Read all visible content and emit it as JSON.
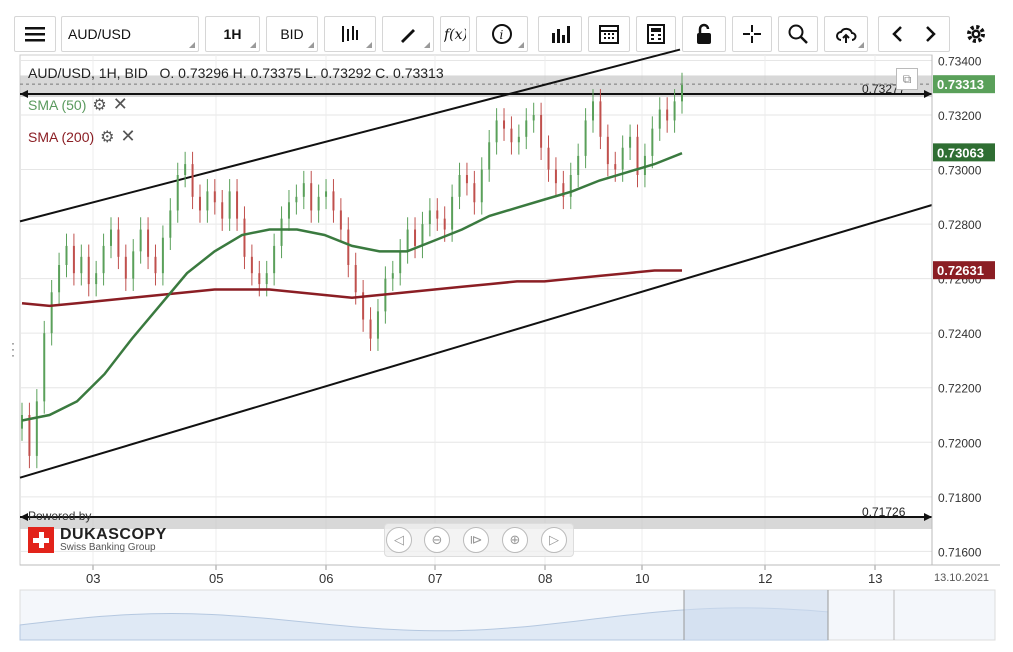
{
  "toolbar": {
    "symbol": "AUD/USD",
    "timeframe": "1H",
    "price_type": "BID",
    "icons": [
      "menu-icon",
      "candlestick-icon",
      "draw-icon",
      "function-icon",
      "info-icon",
      "bar-chart-icon",
      "calendar-icon",
      "calculator-icon",
      "lock-icon",
      "crosshair-icon",
      "zoom-icon",
      "cloud-upload-icon",
      "chevron-left-icon",
      "chevron-right-icon",
      "gear-icon"
    ]
  },
  "header": {
    "instrument_line": "AUD/USD, 1H, BID",
    "open_label": "O.",
    "open": "0.73296",
    "high_label": "H.",
    "high": "0.73375",
    "low_label": "L.",
    "low": "0.73292",
    "close_label": "C.",
    "close": "0.73313"
  },
  "indicators": [
    {
      "label": "SMA (50)",
      "color": "#3a7a3f"
    },
    {
      "label": "SMA (200)",
      "color": "#8b1e24"
    }
  ],
  "branding": {
    "powered_by": "Powered by",
    "name": "DUKASCOPY",
    "tagline": "Swiss Banking Group"
  },
  "chart_data": {
    "type": "candlestick",
    "y_ticks": [
      "0.73400",
      "0.73200",
      "0.73000",
      "0.72800",
      "0.72600",
      "0.72400",
      "0.72200",
      "0.72000",
      "0.71800",
      "0.71600"
    ],
    "ylim": [
      0.7155,
      0.7342
    ],
    "x_ticks": [
      "03",
      "05",
      "06",
      "07",
      "08",
      "10",
      "12",
      "13"
    ],
    "x_corner_label": "13.10.2021",
    "price_labels": [
      {
        "value": "0.73313",
        "color": "#5aa05a"
      },
      {
        "value": "0.73063",
        "color": "#2f6e33"
      },
      {
        "value": "0.72631",
        "color": "#8b1e24"
      }
    ],
    "horizontal_lines": [
      {
        "value": 0.73277,
        "label": "0.73277"
      },
      {
        "value": 0.71726,
        "label": "0.71726"
      }
    ],
    "upper_channel": [
      [
        0.7281
      ],
      [
        0.7344
      ]
    ],
    "lower_channel": [
      [
        0.7187
      ],
      [
        0.7287
      ]
    ],
    "candles_close": [
      0.721,
      0.7195,
      0.7215,
      0.724,
      0.7255,
      0.7265,
      0.7272,
      0.7262,
      0.7268,
      0.7258,
      0.7262,
      0.7272,
      0.7278,
      0.7268,
      0.726,
      0.727,
      0.7278,
      0.7268,
      0.7262,
      0.7275,
      0.7285,
      0.7298,
      0.7302,
      0.729,
      0.7285,
      0.7292,
      0.7288,
      0.7282,
      0.7292,
      0.7282,
      0.7268,
      0.7262,
      0.7258,
      0.7262,
      0.7272,
      0.7282,
      0.7288,
      0.729,
      0.7295,
      0.7285,
      0.729,
      0.7292,
      0.7285,
      0.7278,
      0.7265,
      0.7255,
      0.7245,
      0.7238,
      0.7248,
      0.726,
      0.7262,
      0.727,
      0.7278,
      0.7272,
      0.728,
      0.7285,
      0.7282,
      0.7278,
      0.729,
      0.7298,
      0.7295,
      0.7288,
      0.73,
      0.731,
      0.7318,
      0.7315,
      0.731,
      0.7312,
      0.7318,
      0.732,
      0.7308,
      0.73,
      0.7295,
      0.729,
      0.7298,
      0.7305,
      0.7318,
      0.7325,
      0.7312,
      0.7302,
      0.73,
      0.7308,
      0.7312,
      0.7298,
      0.7305,
      0.7315,
      0.7322,
      0.7318,
      0.7325,
      0.7331
    ],
    "sma50": [
      0.7208,
      0.721,
      0.7215,
      0.7225,
      0.7238,
      0.725,
      0.7262,
      0.727,
      0.7276,
      0.7278,
      0.7278,
      0.7276,
      0.7272,
      0.727,
      0.727,
      0.7274,
      0.7278,
      0.7283,
      0.7286,
      0.7289,
      0.7292,
      0.7296,
      0.7299,
      0.7302,
      0.7306
    ],
    "sma200": [
      0.7251,
      0.725,
      0.7251,
      0.7252,
      0.7253,
      0.7254,
      0.7255,
      0.7256,
      0.7256,
      0.7256,
      0.7255,
      0.7254,
      0.7253,
      0.7254,
      0.7255,
      0.7256,
      0.7257,
      0.7258,
      0.7259,
      0.7259,
      0.726,
      0.7261,
      0.7262,
      0.7263,
      0.7263
    ]
  }
}
